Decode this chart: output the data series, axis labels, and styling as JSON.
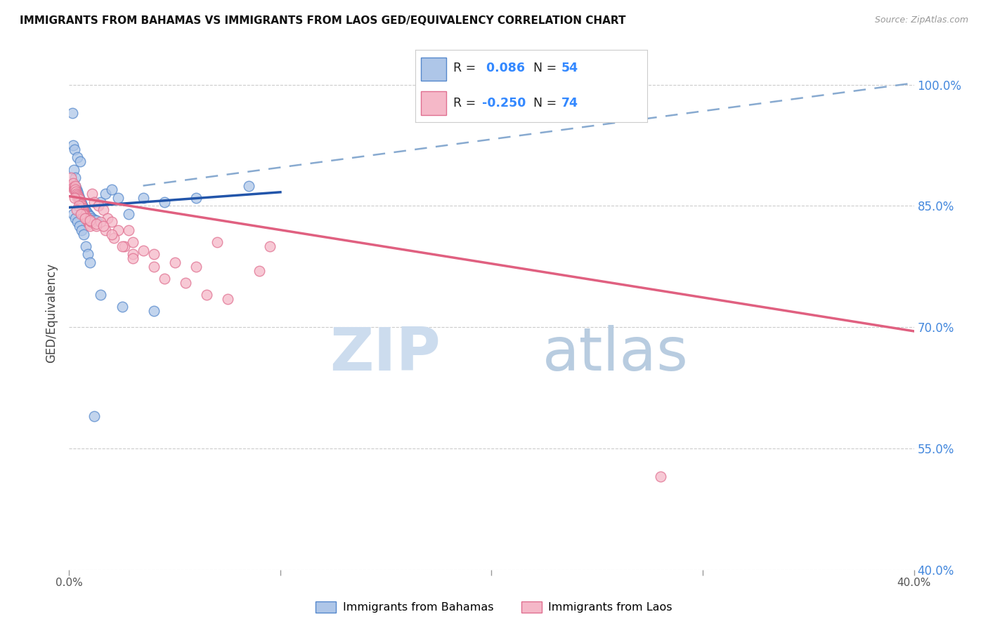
{
  "title": "IMMIGRANTS FROM BAHAMAS VS IMMIGRANTS FROM LAOS GED/EQUIVALENCY CORRELATION CHART",
  "source": "Source: ZipAtlas.com",
  "ylabel": "GED/Equivalency",
  "y_ticks": [
    100.0,
    85.0,
    70.0,
    55.0,
    40.0
  ],
  "y_tick_labels": [
    "100.0%",
    "85.0%",
    "70.0%",
    "55.0%",
    "40.0%"
  ],
  "x_range": [
    0.0,
    40.0
  ],
  "y_range": [
    40.0,
    103.5
  ],
  "legend_r_bahamas": "0.086",
  "legend_n_bahamas": "54",
  "legend_r_laos": "-0.250",
  "legend_n_laos": "74",
  "color_bahamas_fill": "#aec6e8",
  "color_bahamas_edge": "#5588cc",
  "color_laos_fill": "#f5b8c8",
  "color_laos_edge": "#e07090",
  "color_trend_bahamas": "#2255aa",
  "color_trend_laos": "#e06080",
  "color_trend_dashed": "#88aad0",
  "watermark_zip": "ZIP",
  "watermark_atlas": "atlas",
  "watermark_color_zip": "#c5d8ee",
  "watermark_color_atlas": "#b8cce0",
  "trend_bahamas_x0": 0.0,
  "trend_bahamas_y0": 84.8,
  "trend_bahamas_x1": 10.0,
  "trend_bahamas_y1": 86.7,
  "trend_laos_x0": 0.0,
  "trend_laos_y0": 86.2,
  "trend_laos_x1": 40.0,
  "trend_laos_y1": 69.5,
  "trend_dash_x0": 3.5,
  "trend_dash_y0": 87.5,
  "trend_dash_x1": 40.0,
  "trend_dash_y1": 100.2,
  "bahamas_x": [
    0.15,
    0.18,
    0.22,
    0.25,
    0.28,
    0.3,
    0.35,
    0.38,
    0.4,
    0.42,
    0.45,
    0.48,
    0.5,
    0.52,
    0.55,
    0.58,
    0.6,
    0.62,
    0.65,
    0.68,
    0.7,
    0.72,
    0.75,
    0.78,
    0.8,
    0.85,
    0.9,
    0.95,
    1.0,
    1.1,
    1.2,
    1.3,
    1.5,
    1.7,
    2.0,
    2.3,
    2.8,
    3.5,
    4.5,
    6.0,
    8.5,
    0.2,
    0.3,
    0.4,
    0.5,
    0.6,
    0.7,
    0.8,
    0.9,
    1.0,
    1.5,
    2.5,
    4.0,
    1.2
  ],
  "bahamas_y": [
    96.5,
    92.5,
    89.5,
    92.0,
    88.5,
    87.5,
    87.0,
    86.8,
    91.0,
    86.5,
    86.2,
    86.0,
    85.8,
    90.5,
    85.5,
    85.3,
    85.2,
    85.0,
    84.8,
    84.8,
    84.7,
    84.6,
    84.5,
    84.4,
    84.3,
    84.2,
    84.0,
    83.8,
    83.7,
    83.5,
    83.3,
    83.2,
    85.5,
    86.5,
    87.0,
    86.0,
    84.0,
    86.0,
    85.5,
    86.0,
    87.5,
    84.0,
    83.5,
    83.0,
    82.5,
    82.0,
    81.5,
    80.0,
    79.0,
    78.0,
    74.0,
    72.5,
    72.0,
    59.0
  ],
  "laos_x": [
    0.1,
    0.15,
    0.18,
    0.2,
    0.22,
    0.25,
    0.28,
    0.3,
    0.32,
    0.35,
    0.38,
    0.4,
    0.42,
    0.45,
    0.48,
    0.5,
    0.52,
    0.55,
    0.58,
    0.6,
    0.62,
    0.65,
    0.68,
    0.7,
    0.72,
    0.75,
    0.78,
    0.8,
    0.85,
    0.9,
    0.95,
    1.0,
    1.1,
    1.2,
    1.4,
    1.6,
    1.8,
    2.0,
    2.3,
    2.6,
    3.0,
    3.5,
    4.0,
    5.0,
    6.0,
    7.0,
    9.0,
    0.25,
    0.45,
    0.65,
    0.85,
    1.05,
    1.3,
    1.7,
    2.1,
    2.5,
    3.0,
    4.0,
    5.5,
    7.5,
    2.0,
    3.0,
    4.5,
    6.5,
    9.5,
    1.5,
    2.8,
    0.35,
    0.55,
    0.75,
    1.0,
    1.3,
    1.6,
    28.0
  ],
  "laos_y": [
    88.5,
    87.5,
    87.8,
    87.3,
    87.0,
    87.2,
    87.5,
    87.0,
    86.8,
    86.5,
    86.3,
    86.0,
    86.2,
    86.0,
    85.8,
    85.5,
    85.5,
    85.2,
    85.0,
    84.8,
    84.8,
    84.5,
    84.3,
    84.2,
    84.0,
    83.8,
    83.7,
    83.5,
    83.3,
    83.0,
    82.8,
    82.5,
    86.5,
    85.5,
    85.0,
    84.5,
    83.5,
    83.0,
    82.0,
    80.0,
    80.5,
    79.5,
    79.0,
    78.0,
    77.5,
    80.5,
    77.0,
    86.0,
    85.0,
    84.0,
    83.5,
    83.0,
    82.5,
    82.0,
    81.0,
    80.0,
    79.0,
    77.5,
    75.5,
    73.5,
    81.5,
    78.5,
    76.0,
    74.0,
    80.0,
    83.0,
    82.0,
    84.5,
    84.0,
    83.5,
    83.2,
    82.8,
    82.5,
    51.5
  ]
}
